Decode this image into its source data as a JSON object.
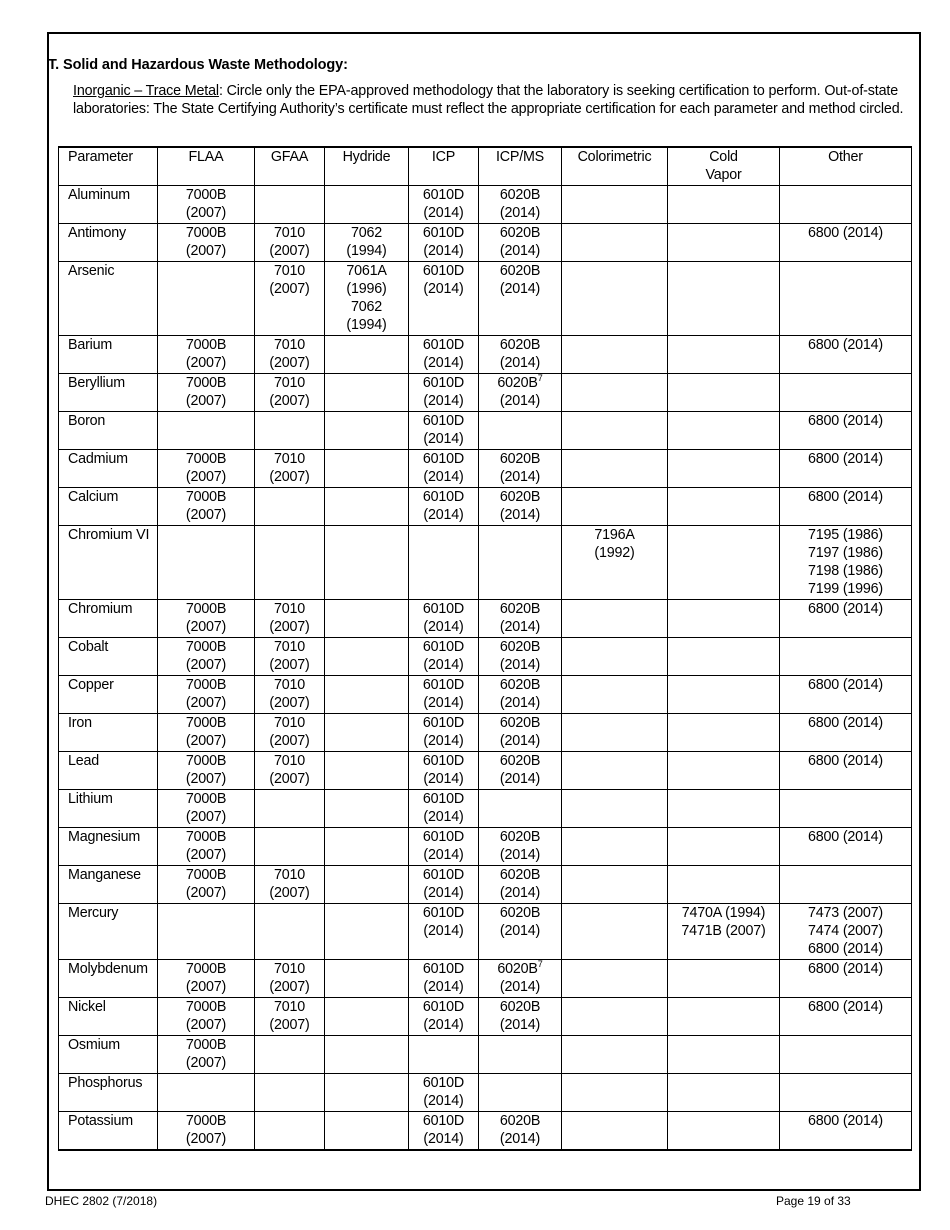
{
  "section_title": "T.  Solid and Hazardous Waste Methodology:",
  "intro": {
    "label": "Inorganic – Trace Metal",
    "text": ":  Circle only the EPA-approved methodology that the laboratory is seeking certification to perform.  Out-of-state laboratories:  The State Certifying Authority’s certificate must reflect the appropriate certification for each parameter and method circled."
  },
  "table": {
    "headers": [
      "Parameter",
      "FLAA",
      "GFAA",
      "Hydride",
      "ICP",
      "ICP/MS",
      "Colorimetric",
      "Cold Vapor",
      "Other"
    ],
    "rows": [
      {
        "parameter": "Aluminum",
        "cells": [
          [
            "7000B",
            "(2007)"
          ],
          [],
          [],
          [
            "6010D",
            "(2014)"
          ],
          [
            "6020B",
            "(2014)"
          ],
          [],
          [],
          []
        ]
      },
      {
        "parameter": "Antimony",
        "cells": [
          [
            "7000B",
            "(2007)"
          ],
          [
            "7010",
            "(2007)"
          ],
          [
            "7062",
            "(1994)"
          ],
          [
            "6010D",
            "(2014)"
          ],
          [
            "6020B",
            "(2014)"
          ],
          [],
          [],
          [
            "6800 (2014)"
          ]
        ]
      },
      {
        "parameter": "Arsenic",
        "cells": [
          [],
          [
            "7010",
            "(2007)"
          ],
          [
            "7061A",
            "(1996)",
            "7062",
            "(1994)"
          ],
          [
            "6010D",
            "(2014)"
          ],
          [
            "6020B",
            "(2014)"
          ],
          [],
          [],
          []
        ]
      },
      {
        "parameter": "Barium",
        "cells": [
          [
            "7000B",
            "(2007)"
          ],
          [
            "7010",
            "(2007)"
          ],
          [],
          [
            "6010D",
            "(2014)"
          ],
          [
            "6020B",
            "(2014)"
          ],
          [],
          [],
          [
            "6800 (2014)"
          ]
        ]
      },
      {
        "parameter": "Beryllium",
        "cells": [
          [
            "7000B",
            "(2007)"
          ],
          [
            "7010",
            "(2007)"
          ],
          [],
          [
            "6010D",
            "(2014)"
          ],
          [
            {
              "text": "6020B",
              "sup": "7"
            },
            "(2014)"
          ],
          [],
          [],
          []
        ]
      },
      {
        "parameter": "Boron",
        "cells": [
          [],
          [],
          [],
          [
            "6010D",
            "(2014)"
          ],
          [],
          [],
          [],
          [
            "6800 (2014)"
          ]
        ]
      },
      {
        "parameter": "Cadmium",
        "cells": [
          [
            "7000B",
            "(2007)"
          ],
          [
            "7010",
            "(2007)"
          ],
          [],
          [
            "6010D",
            "(2014)"
          ],
          [
            "6020B",
            "(2014)"
          ],
          [],
          [],
          [
            "6800 (2014)"
          ]
        ]
      },
      {
        "parameter": "Calcium",
        "cells": [
          [
            "7000B",
            "(2007)"
          ],
          [],
          [],
          [
            "6010D",
            "(2014)"
          ],
          [
            "6020B",
            "(2014)"
          ],
          [],
          [],
          [
            "6800 (2014)"
          ]
        ]
      },
      {
        "parameter": "Chromium VI",
        "cells": [
          [],
          [],
          [],
          [],
          [],
          [
            "7196A",
            "(1992)"
          ],
          [],
          [
            "7195 (1986)",
            "7197 (1986)",
            "7198 (1986)",
            "7199 (1996)"
          ]
        ]
      },
      {
        "parameter": "Chromium",
        "cells": [
          [
            "7000B",
            "(2007)"
          ],
          [
            "7010",
            "(2007)"
          ],
          [],
          [
            "6010D",
            "(2014)"
          ],
          [
            "6020B",
            "(2014)"
          ],
          [],
          [],
          [
            "6800 (2014)"
          ]
        ]
      },
      {
        "parameter": "Cobalt",
        "cells": [
          [
            "7000B",
            "(2007)"
          ],
          [
            "7010",
            "(2007)"
          ],
          [],
          [
            "6010D",
            "(2014)"
          ],
          [
            "6020B",
            "(2014)"
          ],
          [],
          [],
          []
        ]
      },
      {
        "parameter": "Copper",
        "cells": [
          [
            "7000B",
            "(2007)"
          ],
          [
            "7010",
            "(2007)"
          ],
          [],
          [
            "6010D",
            "(2014)"
          ],
          [
            "6020B",
            "(2014)"
          ],
          [],
          [],
          [
            "6800 (2014)"
          ]
        ]
      },
      {
        "parameter": "Iron",
        "cells": [
          [
            "7000B",
            "(2007)"
          ],
          [
            "7010",
            "(2007)"
          ],
          [],
          [
            "6010D",
            "(2014)"
          ],
          [
            "6020B",
            "(2014)"
          ],
          [],
          [],
          [
            "6800 (2014)"
          ]
        ]
      },
      {
        "parameter": "Lead",
        "cells": [
          [
            "7000B",
            "(2007)"
          ],
          [
            "7010",
            "(2007)"
          ],
          [],
          [
            "6010D",
            "(2014)"
          ],
          [
            "6020B",
            "(2014)"
          ],
          [],
          [],
          [
            "6800 (2014)"
          ]
        ]
      },
      {
        "parameter": "Lithium",
        "cells": [
          [
            "7000B",
            "(2007)"
          ],
          [],
          [],
          [
            "6010D",
            "(2014)"
          ],
          [],
          [],
          [],
          []
        ]
      },
      {
        "parameter": "Magnesium",
        "cells": [
          [
            "7000B",
            "(2007)"
          ],
          [],
          [],
          [
            "6010D",
            "(2014)"
          ],
          [
            "6020B",
            "(2014)"
          ],
          [],
          [],
          [
            "6800 (2014)"
          ]
        ]
      },
      {
        "parameter": "Manganese",
        "cells": [
          [
            "7000B",
            "(2007)"
          ],
          [
            "7010",
            "(2007)"
          ],
          [],
          [
            "6010D",
            "(2014)"
          ],
          [
            "6020B",
            "(2014)"
          ],
          [],
          [],
          []
        ]
      },
      {
        "parameter": "Mercury",
        "cells": [
          [],
          [],
          [],
          [
            "6010D",
            "(2014)"
          ],
          [
            "6020B",
            "(2014)"
          ],
          [],
          [
            "7470A (1994)",
            "7471B (2007)"
          ],
          [
            "7473 (2007)",
            "7474 (2007)",
            "6800 (2014)"
          ]
        ]
      },
      {
        "parameter": "Molybdenum",
        "cells": [
          [
            "7000B",
            "(2007)"
          ],
          [
            "7010",
            "(2007)"
          ],
          [],
          [
            "6010D",
            "(2014)"
          ],
          [
            {
              "text": "6020B",
              "sup": "7"
            },
            "(2014)"
          ],
          [],
          [],
          [
            "6800 (2014)"
          ]
        ]
      },
      {
        "parameter": "Nickel",
        "cells": [
          [
            "7000B",
            "(2007)"
          ],
          [
            "7010",
            "(2007)"
          ],
          [],
          [
            "6010D",
            "(2014)"
          ],
          [
            "6020B",
            "(2014)"
          ],
          [],
          [],
          [
            "6800 (2014)"
          ]
        ]
      },
      {
        "parameter": "Osmium",
        "cells": [
          [
            "7000B",
            "(2007)"
          ],
          [],
          [],
          [],
          [],
          [],
          [],
          []
        ]
      },
      {
        "parameter": "Phosphorus",
        "cells": [
          [],
          [],
          [],
          [
            "6010D",
            "(2014)"
          ],
          [],
          [],
          [],
          []
        ]
      },
      {
        "parameter": "Potassium",
        "cells": [
          [
            "7000B",
            "(2007)"
          ],
          [],
          [],
          [
            "6010D",
            "(2014)"
          ],
          [
            "6020B",
            "(2014)"
          ],
          [],
          [],
          [
            "6800 (2014)"
          ]
        ]
      }
    ]
  },
  "footer": {
    "form_id": "DHEC 2802 (7/2018)",
    "page": "Page 19 of 33"
  }
}
